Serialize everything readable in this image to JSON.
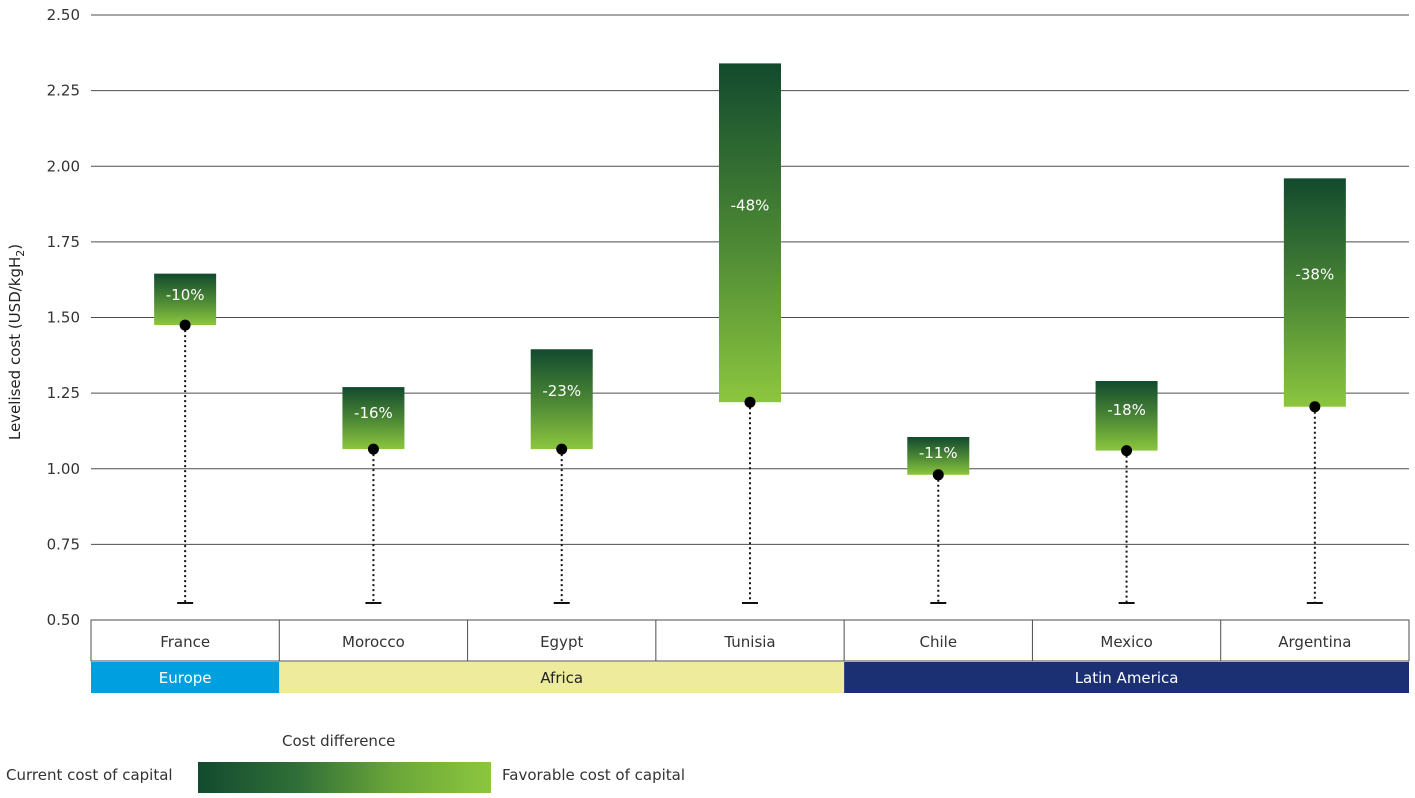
{
  "chart_data": {
    "type": "bar",
    "subtype": "floating-range-bar",
    "ylabel": "Levelised cost (USD/kgH",
    "ylabel_subscript": "2",
    "ylabel_suffix": ")",
    "ylim": [
      0.5,
      2.5
    ],
    "yticks": [
      "0.50",
      "0.75",
      "1.00",
      "1.25",
      "1.50",
      "1.75",
      "2.00",
      "2.25",
      "2.50"
    ],
    "grid": true,
    "categories": [
      "France",
      "Morocco",
      "Egypt",
      "Tunisia",
      "Chile",
      "Mexico",
      "Argentina"
    ],
    "current_cost": [
      1.645,
      1.27,
      1.395,
      2.34,
      1.105,
      1.29,
      1.96
    ],
    "favorable_cost": [
      1.475,
      1.065,
      1.065,
      1.22,
      0.98,
      1.06,
      1.205
    ],
    "labels": [
      "-10%",
      "-16%",
      "-23%",
      "-48%",
      "-11%",
      "-18%",
      "-38%"
    ],
    "regions": [
      {
        "name": "Europe",
        "span": 1,
        "color": "#009fdf",
        "text_color": "#ffffff"
      },
      {
        "name": "Africa",
        "span": 3,
        "color": "#efeb9c",
        "text_color": "#222222"
      },
      {
        "name": "Latin America",
        "span": 3,
        "color": "#1b2f73",
        "text_color": "#ffffff"
      }
    ],
    "gradient_colors": [
      "#124a2e",
      "#8cc63f"
    ]
  },
  "legend": {
    "title": "Cost difference",
    "left_label": "Current cost of capital",
    "right_label": "Favorable cost of capital"
  }
}
